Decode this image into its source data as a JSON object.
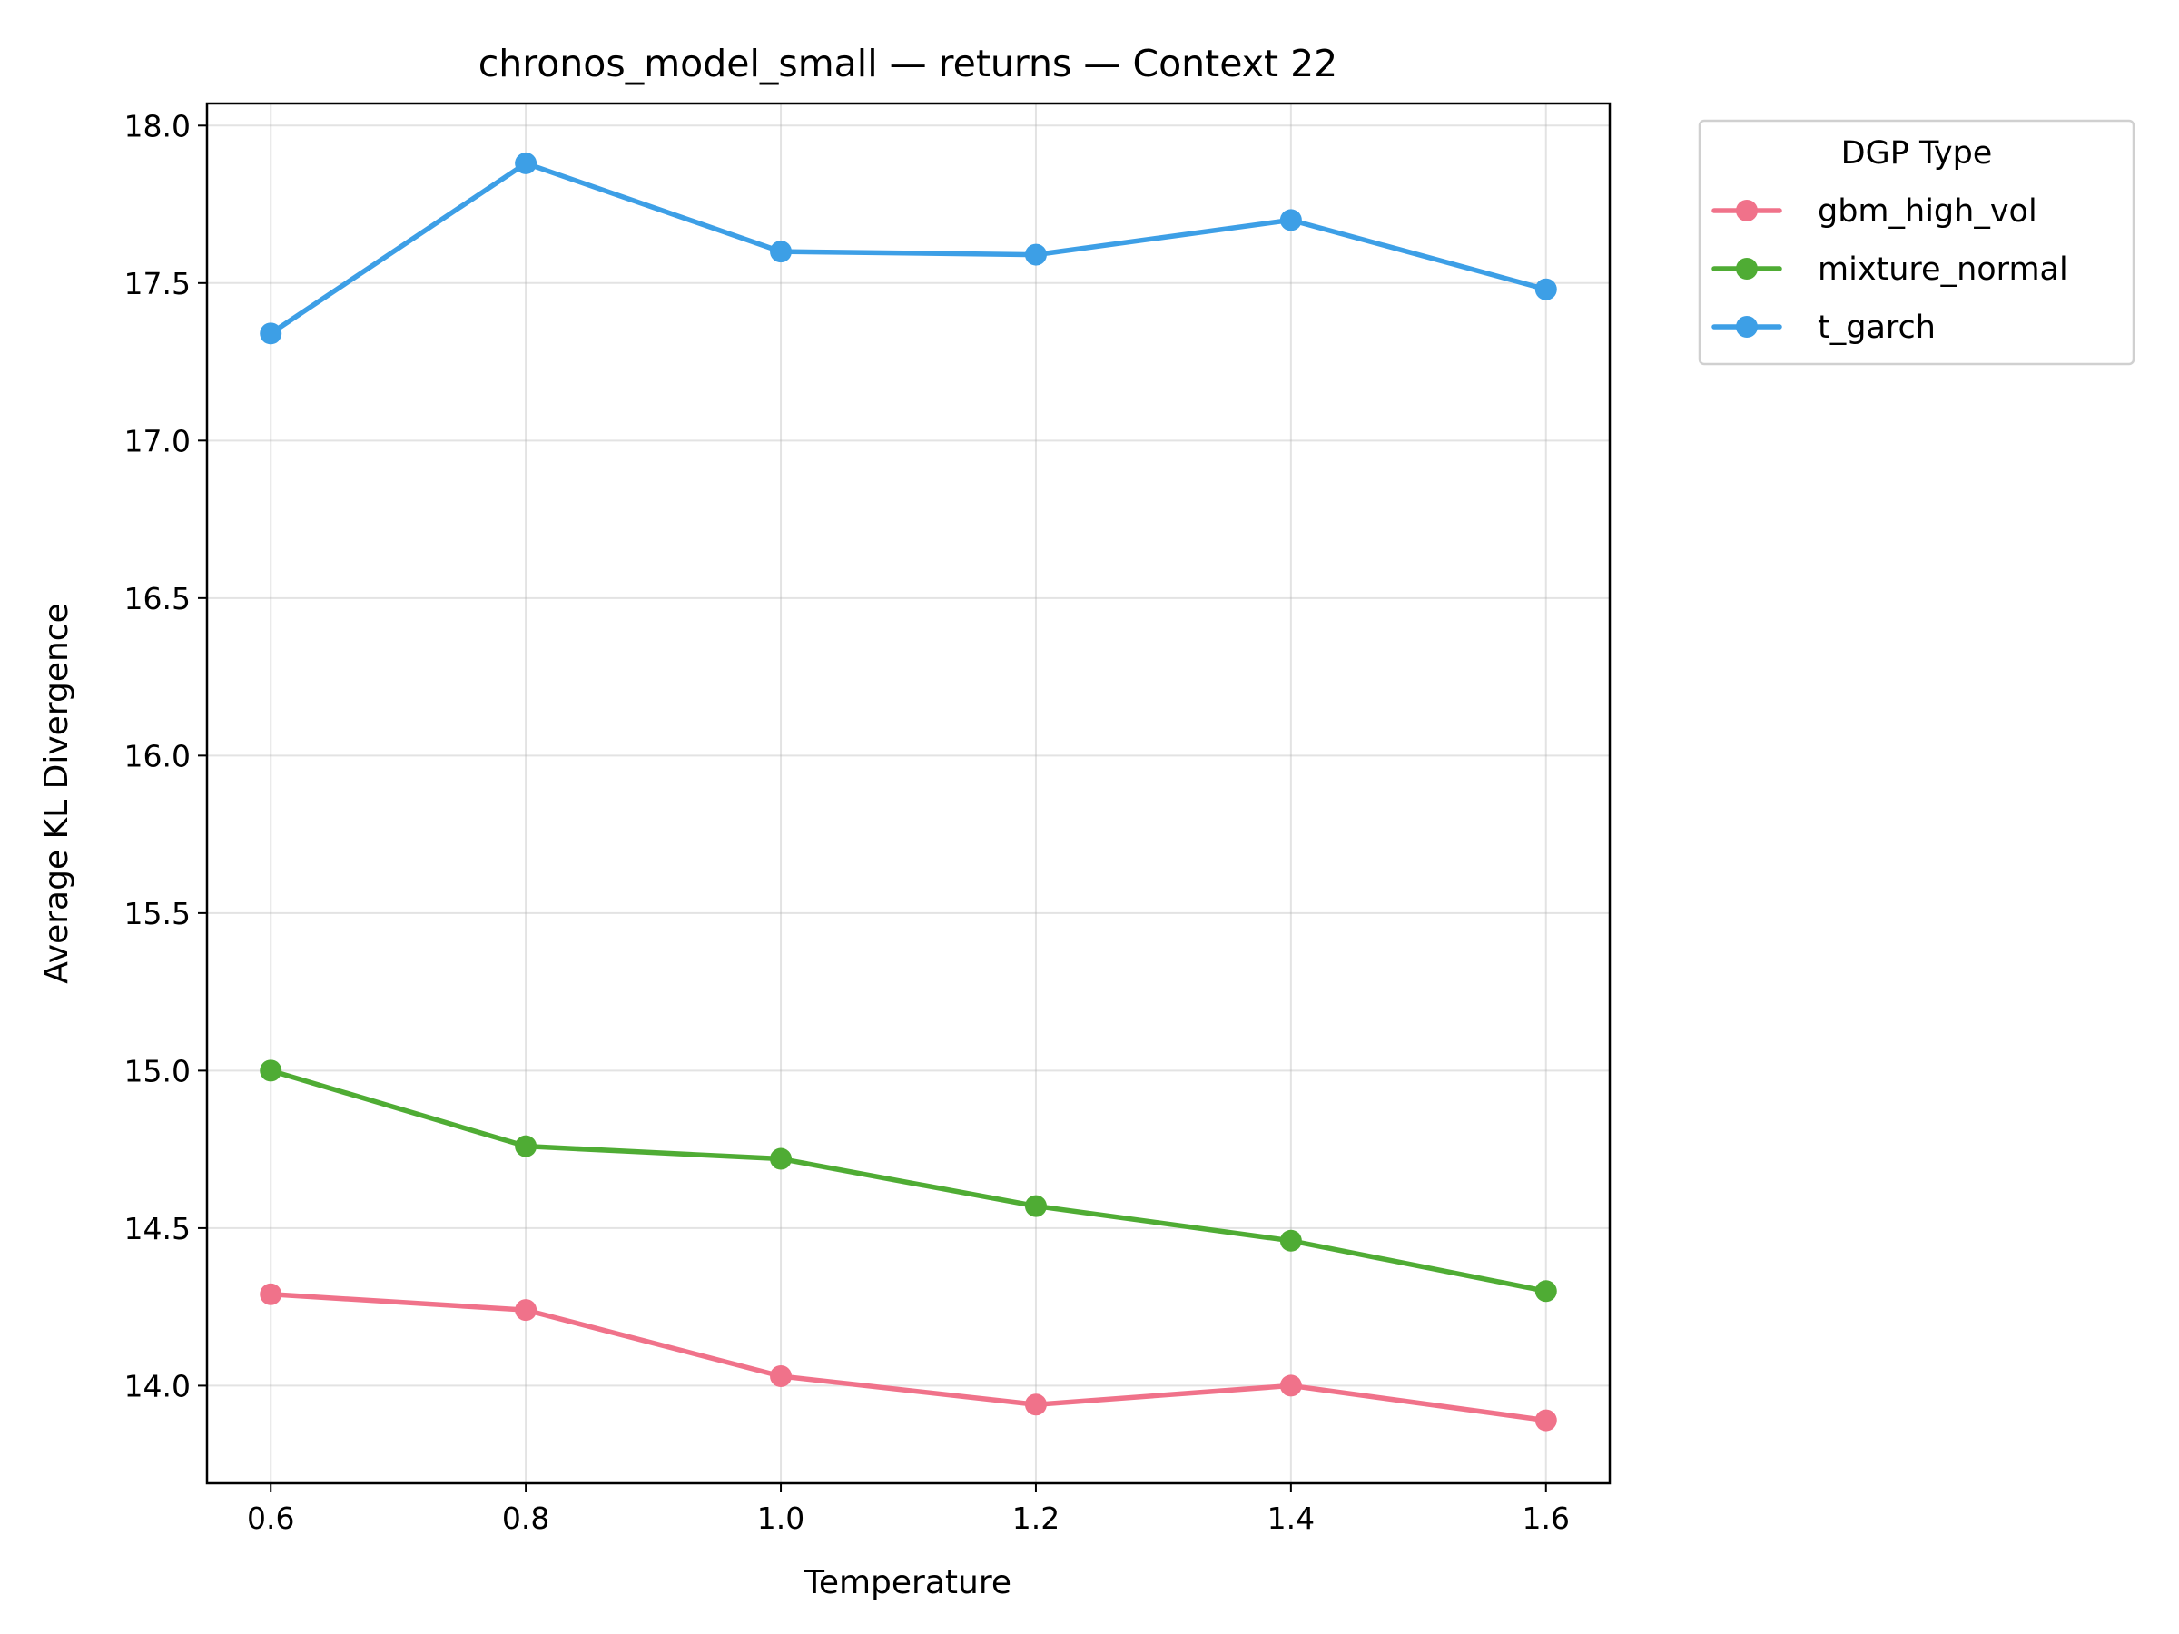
{
  "chart_data": {
    "type": "line",
    "title": "chronos_model_small — returns — Context 22",
    "xlabel": "Temperature",
    "ylabel": "Average KL Divergence",
    "x": [
      0.6,
      0.8,
      1.0,
      1.2,
      1.4,
      1.6
    ],
    "xlim": [
      0.55,
      1.65
    ],
    "ylim": [
      13.69,
      18.07
    ],
    "xticks": [
      "0.6",
      "0.8",
      "1.0",
      "1.2",
      "1.4",
      "1.6"
    ],
    "yticks": [
      "14.0",
      "14.5",
      "15.0",
      "15.5",
      "16.0",
      "16.5",
      "17.0",
      "17.5",
      "18.0"
    ],
    "grid": true,
    "legend": {
      "title": "DGP Type",
      "placement": "outside-top-right"
    },
    "series": [
      {
        "name": "gbm_high_vol",
        "color": "#f0728a",
        "values": [
          14.29,
          14.24,
          14.03,
          13.94,
          14.0,
          13.89
        ]
      },
      {
        "name": "mixture_normal",
        "color": "#4fac34",
        "values": [
          15.0,
          14.76,
          14.72,
          14.57,
          14.46,
          14.3
        ]
      },
      {
        "name": "t_garch",
        "color": "#3d9fe6",
        "values": [
          17.34,
          17.88,
          17.6,
          17.59,
          17.7,
          17.48
        ]
      }
    ]
  }
}
